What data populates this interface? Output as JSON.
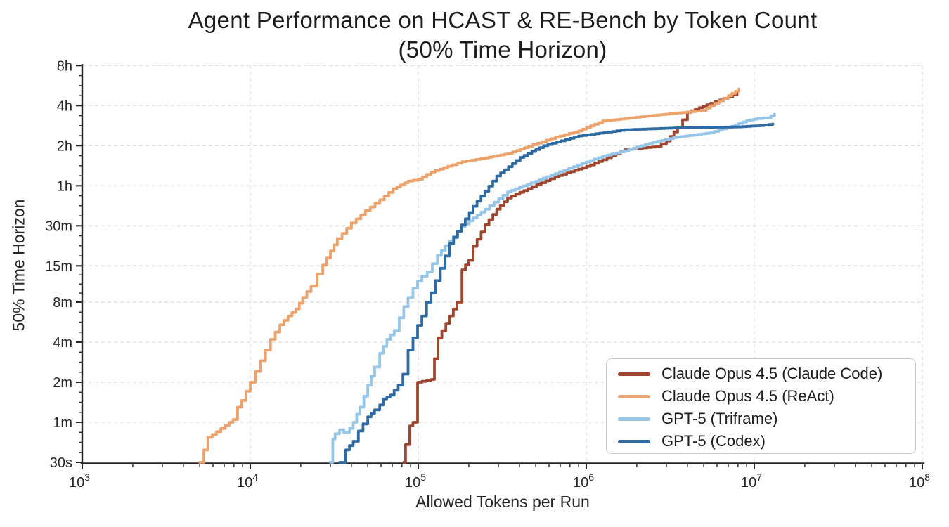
{
  "title_line1": "Agent Performance on HCAST & RE-Bench by Token Count",
  "title_line2": "(50% Time Horizon)",
  "chart_data": {
    "type": "line",
    "title": "Agent Performance on HCAST & RE-Bench by Token Count (50% Time Horizon)",
    "xlabel": "Allowed Tokens per Run",
    "ylabel": "50% Time Horizon",
    "x_scale": "log10",
    "x_range_tokens": [
      1000,
      100000000
    ],
    "x_ticks": [
      {
        "label": "10^3",
        "exponent": 3
      },
      {
        "label": "10^4",
        "exponent": 4
      },
      {
        "label": "10^5",
        "exponent": 5
      },
      {
        "label": "10^6",
        "exponent": 6
      },
      {
        "label": "10^7",
        "exponent": 7
      },
      {
        "label": "10^8",
        "exponent": 8
      }
    ],
    "y_scale": "log2-time",
    "y_ticks": [
      {
        "label": "30s",
        "minutes": 0.5
      },
      {
        "label": "1m",
        "minutes": 1
      },
      {
        "label": "2m",
        "minutes": 2
      },
      {
        "label": "4m",
        "minutes": 4
      },
      {
        "label": "8m",
        "minutes": 8
      },
      {
        "label": "15m",
        "minutes": 15
      },
      {
        "label": "30m",
        "minutes": 30
      },
      {
        "label": "1h",
        "minutes": 60
      },
      {
        "label": "2h",
        "minutes": 120
      },
      {
        "label": "4h",
        "minutes": 240
      },
      {
        "label": "8h",
        "minutes": 480
      }
    ],
    "grid": "dashed",
    "legend_position": "lower right",
    "series": [
      {
        "name": "Claude Opus 4.5 (Claude Code)",
        "id": "claude-opus-4-5-claude-code",
        "color": "#A0452E",
        "points": [
          [
            82000,
            0.5
          ],
          [
            84000,
            0.68
          ],
          [
            89000,
            0.94
          ],
          [
            93000,
            1.0
          ],
          [
            99000,
            2.0
          ],
          [
            119000,
            2.1
          ],
          [
            131000,
            4.3
          ],
          [
            154000,
            6.3
          ],
          [
            170000,
            8.0
          ],
          [
            182000,
            14
          ],
          [
            200000,
            16.5
          ],
          [
            212000,
            21
          ],
          [
            250000,
            30.5
          ],
          [
            293000,
            40
          ],
          [
            340000,
            48.5
          ],
          [
            475000,
            59
          ],
          [
            650000,
            70
          ],
          [
            900000,
            80
          ],
          [
            1060000,
            86
          ],
          [
            1250000,
            94
          ],
          [
            1700000,
            112
          ],
          [
            2600000,
            118
          ],
          [
            3000000,
            130
          ],
          [
            3500000,
            165
          ],
          [
            4000000,
            214
          ],
          [
            5500000,
            250
          ],
          [
            7000000,
            280
          ],
          [
            7900000,
            300
          ]
        ]
      },
      {
        "name": "Claude Opus 4.5 (ReAct)",
        "id": "claude-opus-4-5-react",
        "color": "#EDA26C",
        "points": [
          [
            5000,
            0.5
          ],
          [
            5300,
            0.62
          ],
          [
            5600,
            0.77
          ],
          [
            6300,
            0.85
          ],
          [
            7100,
            0.95
          ],
          [
            7900,
            1.05
          ],
          [
            8400,
            1.3
          ],
          [
            8900,
            1.46
          ],
          [
            10000,
            2.0
          ],
          [
            11500,
            2.9
          ],
          [
            13200,
            4.2
          ],
          [
            15000,
            5.4
          ],
          [
            16800,
            6.3
          ],
          [
            18700,
            7.1
          ],
          [
            20500,
            8.7
          ],
          [
            23000,
            10.6
          ],
          [
            25000,
            13
          ],
          [
            27000,
            15.2
          ],
          [
            30000,
            19.4
          ],
          [
            33000,
            24
          ],
          [
            40000,
            31.5
          ],
          [
            48500,
            39
          ],
          [
            59000,
            47
          ],
          [
            71000,
            57
          ],
          [
            87000,
            65
          ],
          [
            100000,
            67
          ],
          [
            119000,
            76
          ],
          [
            150000,
            84
          ],
          [
            182000,
            91
          ],
          [
            250000,
            97
          ],
          [
            344000,
            105
          ],
          [
            480000,
            122
          ],
          [
            655000,
            139
          ],
          [
            900000,
            155
          ],
          [
            1250000,
            184
          ],
          [
            1700000,
            192
          ],
          [
            2360000,
            201
          ],
          [
            3300000,
            210
          ],
          [
            4500000,
            218
          ],
          [
            4900000,
            221
          ],
          [
            5800000,
            250
          ],
          [
            7000000,
            285
          ],
          [
            8100000,
            320
          ]
        ]
      },
      {
        "name": "GPT-5 (Triframe)",
        "id": "gpt-5-triframe",
        "color": "#95C5E8",
        "points": [
          [
            30000,
            0.5
          ],
          [
            31000,
            0.75
          ],
          [
            32000,
            0.82
          ],
          [
            34000,
            0.88
          ],
          [
            36000,
            0.84
          ],
          [
            39000,
            0.9
          ],
          [
            41000,
            1.0
          ],
          [
            43000,
            1.15
          ],
          [
            45000,
            1.3
          ],
          [
            50000,
            1.9
          ],
          [
            55000,
            2.6
          ],
          [
            59000,
            3.3
          ],
          [
            65000,
            4.2
          ],
          [
            72000,
            4.9
          ],
          [
            77000,
            6.1
          ],
          [
            82000,
            7.4
          ],
          [
            87000,
            8.7
          ],
          [
            93000,
            10.2
          ],
          [
            99000,
            11.5
          ],
          [
            105000,
            12.5
          ],
          [
            113000,
            13.5
          ],
          [
            130000,
            18
          ],
          [
            180000,
            29.5
          ],
          [
            250000,
            40
          ],
          [
            340000,
            54
          ],
          [
            470000,
            63
          ],
          [
            650000,
            74
          ],
          [
            890000,
            86
          ],
          [
            1250000,
            100
          ],
          [
            1700000,
            110
          ],
          [
            2360000,
            125
          ],
          [
            3300000,
            138
          ],
          [
            5450000,
            150
          ],
          [
            7300000,
            168
          ],
          [
            9000000,
            185
          ],
          [
            10400000,
            192
          ],
          [
            12000000,
            195
          ],
          [
            13200000,
            207
          ]
        ]
      },
      {
        "name": "GPT-5 (Codex)",
        "id": "gpt-5-codex",
        "color": "#2E6BA4",
        "points": [
          [
            34000,
            0.5
          ],
          [
            37000,
            0.62
          ],
          [
            41000,
            0.72
          ],
          [
            44000,
            0.86
          ],
          [
            50000,
            1.1
          ],
          [
            55000,
            1.24
          ],
          [
            59000,
            1.35
          ],
          [
            62000,
            1.5
          ],
          [
            68000,
            1.6
          ],
          [
            76000,
            1.9
          ],
          [
            81000,
            2.3
          ],
          [
            87000,
            3.5
          ],
          [
            93000,
            4.3
          ],
          [
            99000,
            5.35
          ],
          [
            105000,
            6.3
          ],
          [
            112000,
            8.0
          ],
          [
            119000,
            9.4
          ],
          [
            154000,
            22
          ],
          [
            212000,
            42
          ],
          [
            293000,
            71
          ],
          [
            404000,
            98
          ],
          [
            557000,
            120
          ],
          [
            900000,
            142
          ],
          [
            1700000,
            158
          ],
          [
            3300000,
            163
          ],
          [
            5500000,
            165
          ],
          [
            8000000,
            166
          ],
          [
            10800000,
            170
          ],
          [
            12900000,
            175
          ]
        ]
      }
    ]
  }
}
